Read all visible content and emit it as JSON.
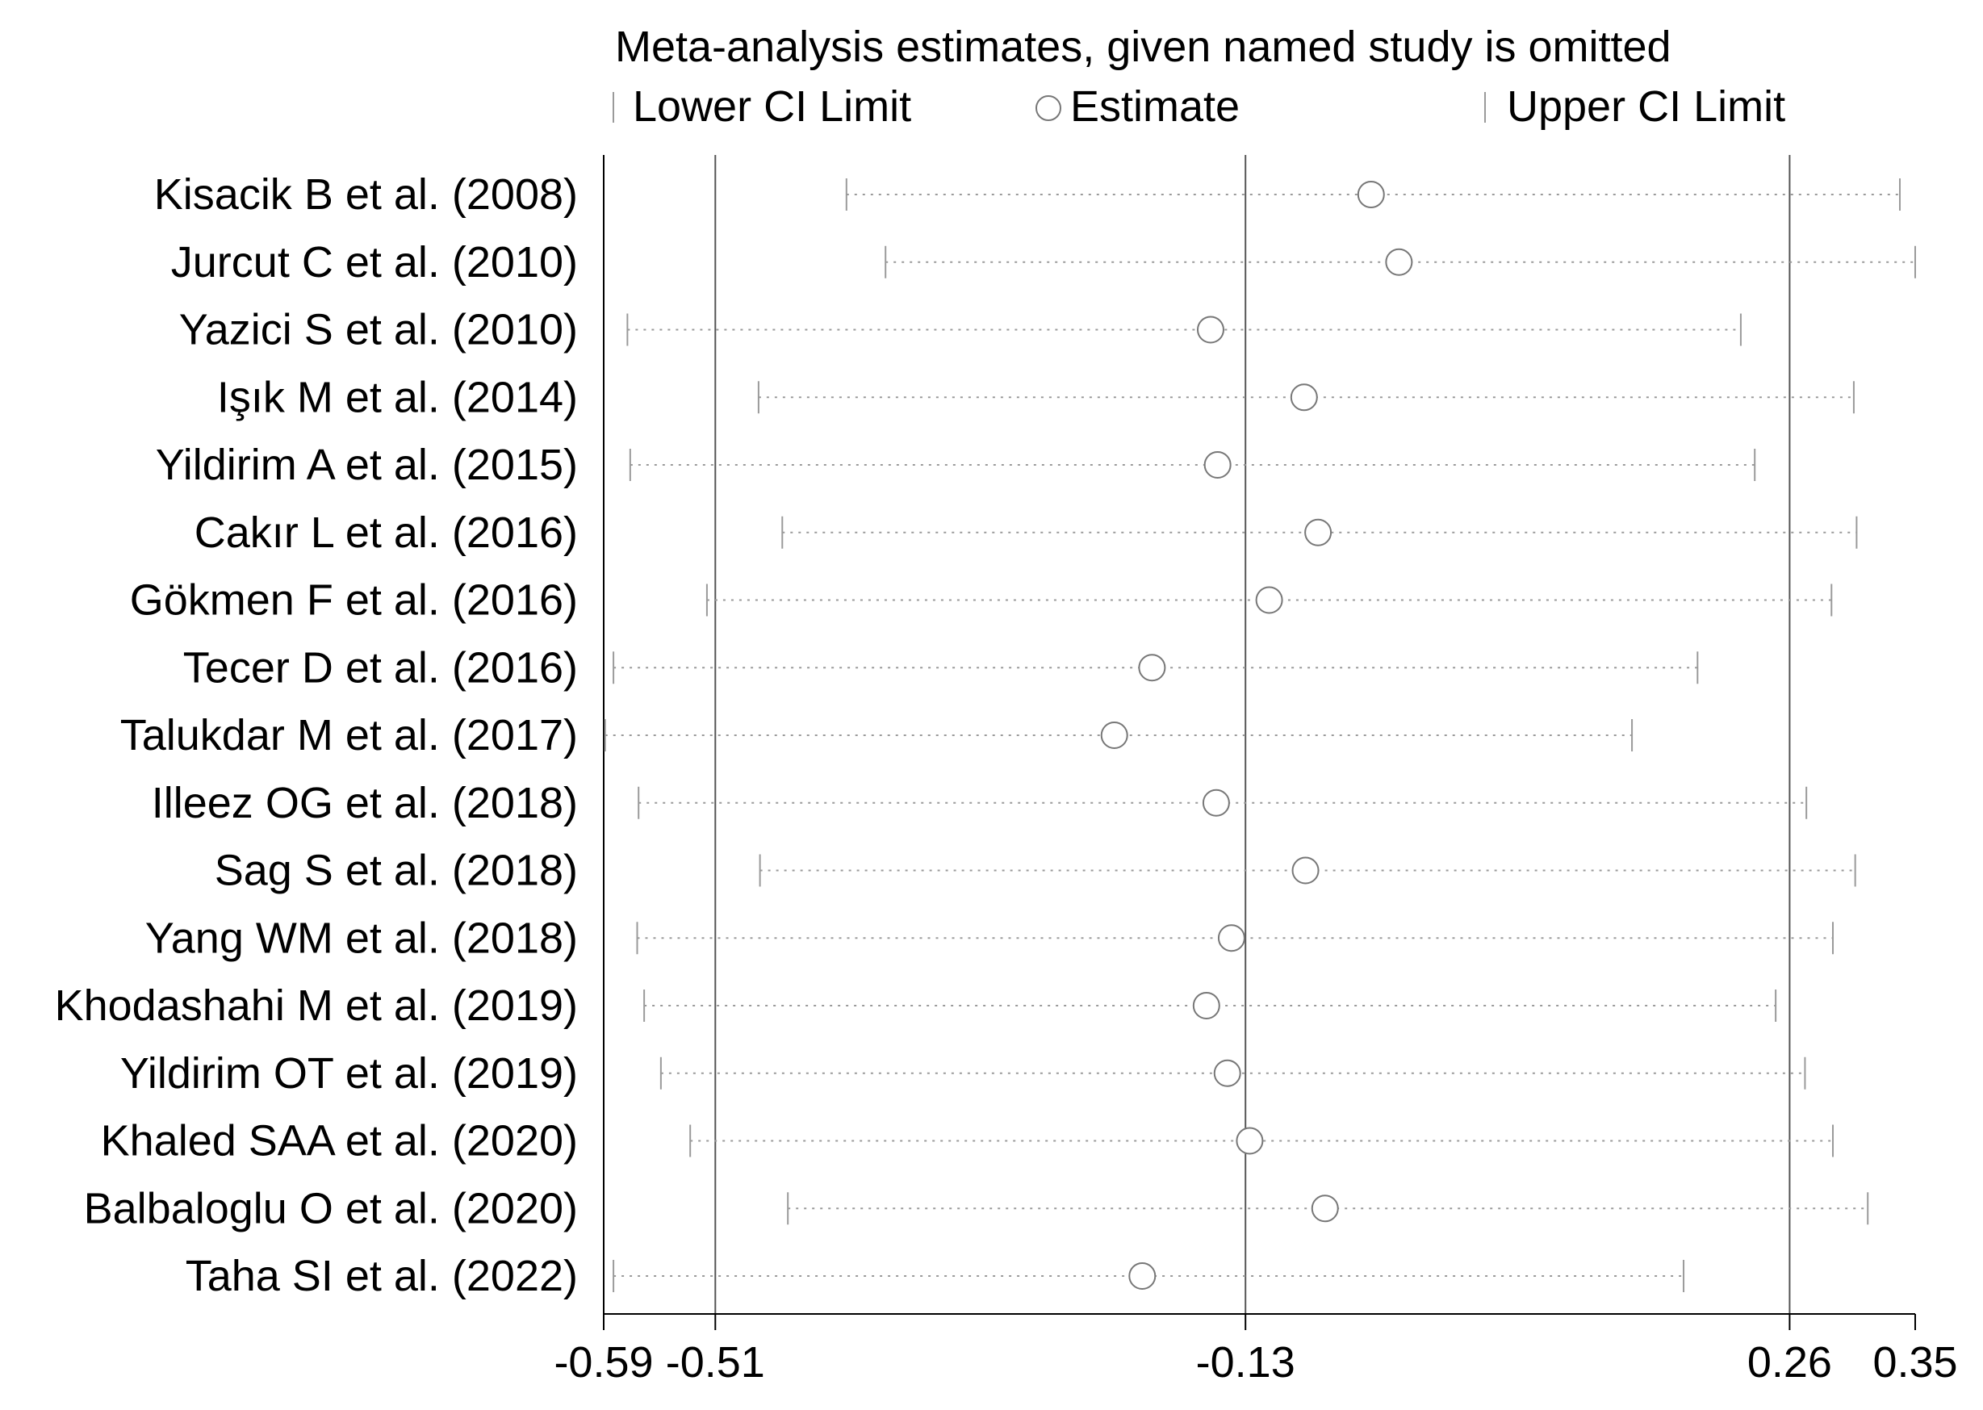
{
  "chart_data": {
    "type": "scatter",
    "title": "Meta-analysis estimates, given named study is omitted",
    "legend": {
      "lower": "Lower CI Limit",
      "estimate": "Estimate",
      "upper": "Upper CI Limit",
      "position": "top"
    },
    "xlim": [
      -0.59,
      0.35
    ],
    "x_ticks": [
      -0.59,
      -0.51,
      -0.13,
      0.26,
      0.35
    ],
    "x_tick_labels": [
      "-0.59",
      "-0.51",
      "-0.13",
      "0.26",
      "0.35"
    ],
    "reference_lines": [
      -0.51,
      -0.13,
      0.26
    ],
    "studies": [
      {
        "label": "Kisacik B et al. (2008)",
        "lower": -0.416,
        "estimate": -0.04,
        "upper": 0.339
      },
      {
        "label": "Jurcut C et al.  (2010)",
        "lower": -0.388,
        "estimate": -0.02,
        "upper": 0.35
      },
      {
        "label": "Yazici S et al.  (2010)",
        "lower": -0.573,
        "estimate": -0.155,
        "upper": 0.225
      },
      {
        "label": "Işık M et al. (2014)",
        "lower": -0.479,
        "estimate": -0.088,
        "upper": 0.306
      },
      {
        "label": "Yildirim A et al. (2015)",
        "lower": -0.571,
        "estimate": -0.15,
        "upper": 0.235
      },
      {
        "label": "Cakır L et al. (2016)",
        "lower": -0.462,
        "estimate": -0.078,
        "upper": 0.308
      },
      {
        "label": "Gökmen F et al. (2016)",
        "lower": -0.516,
        "estimate": -0.113,
        "upper": 0.29
      },
      {
        "label": "Tecer D et al. (2016)",
        "lower": -0.583,
        "estimate": -0.197,
        "upper": 0.194
      },
      {
        "label": "Talukdar M et al. (2017)",
        "lower": -0.589,
        "estimate": -0.224,
        "upper": 0.147
      },
      {
        "label": "Illeez OG et al.  (2018)",
        "lower": -0.565,
        "estimate": -0.151,
        "upper": 0.272
      },
      {
        "label": "Sag S et al. (2018)",
        "lower": -0.478,
        "estimate": -0.087,
        "upper": 0.307
      },
      {
        "label": "Yang WM et al. (2018)",
        "lower": -0.566,
        "estimate": -0.14,
        "upper": 0.291
      },
      {
        "label": "Khodashahi M et al. (2019)",
        "lower": -0.561,
        "estimate": -0.158,
        "upper": 0.25
      },
      {
        "label": "Yildirim OT et al. (2019)",
        "lower": -0.549,
        "estimate": -0.143,
        "upper": 0.271
      },
      {
        "label": "Khaled SAA et al. (2020)",
        "lower": -0.528,
        "estimate": -0.127,
        "upper": 0.291
      },
      {
        "label": "Balbaloglu O et al. (2020)",
        "lower": -0.458,
        "estimate": -0.073,
        "upper": 0.316
      },
      {
        "label": "Taha SI et al. (2022)",
        "lower": -0.583,
        "estimate": -0.204,
        "upper": 0.184
      }
    ],
    "colors": {
      "axis": "#000000",
      "whisker": "#9a9a9a",
      "marker": "#777777",
      "reference": "#555555"
    }
  }
}
